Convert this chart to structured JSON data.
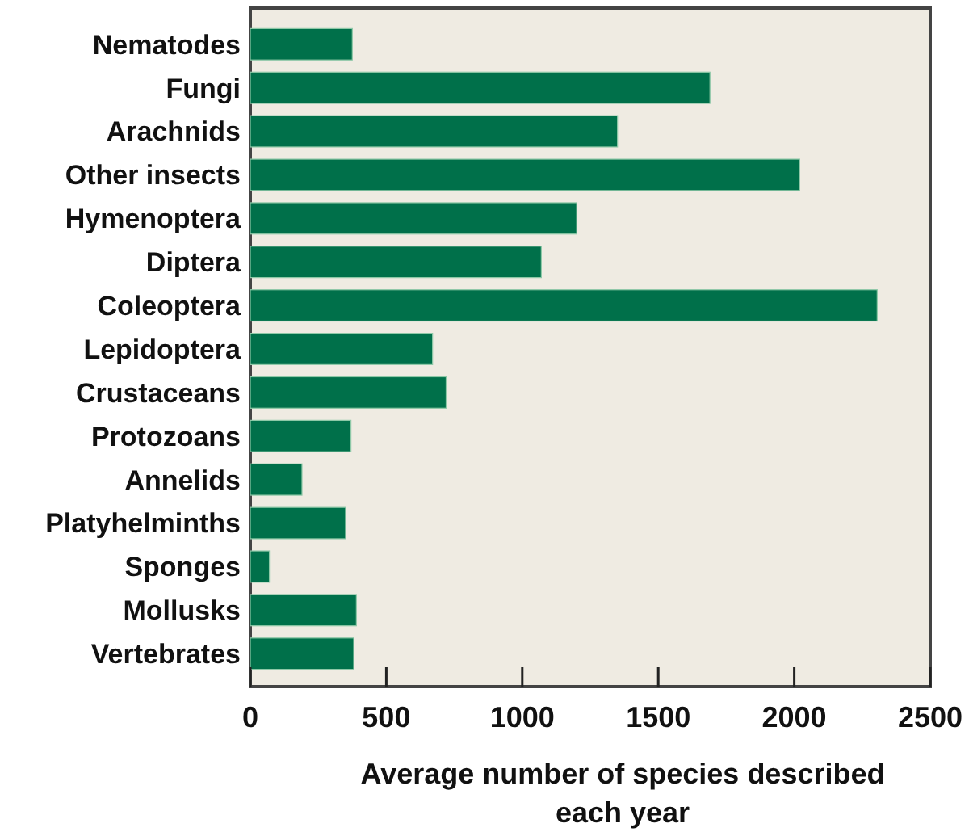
{
  "chart_data": {
    "type": "bar",
    "orientation": "horizontal",
    "xlabel": "Average number of species described each year",
    "categories": [
      "Nematodes",
      "Fungi",
      "Arachnids",
      "Other insects",
      "Hymenoptera",
      "Diptera",
      "Coleoptera",
      "Lepidoptera",
      "Crustaceans",
      "Protozoans",
      "Annelids",
      "Platyhelminths",
      "Sponges",
      "Mollusks",
      "Vertebrates"
    ],
    "values": [
      375,
      1690,
      1350,
      2020,
      1200,
      1070,
      2305,
      670,
      720,
      370,
      190,
      350,
      70,
      390,
      380
    ],
    "color": "#00704a",
    "xlim": [
      0,
      2500
    ],
    "xticks": [
      0,
      500,
      1000,
      1500,
      2000,
      2500
    ]
  }
}
